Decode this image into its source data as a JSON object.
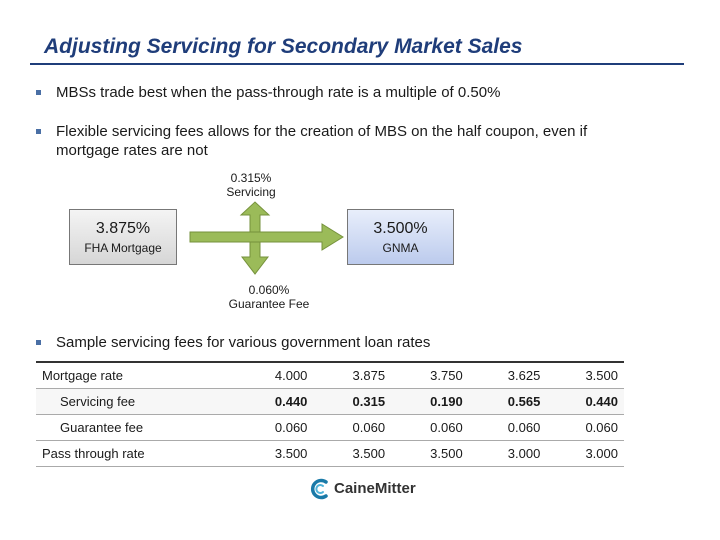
{
  "slide": {
    "title": "Adjusting Servicing for Secondary Market Sales",
    "bullets": [
      "MBSs trade best when the pass-through rate is a multiple of 0.50%",
      "Flexible servicing fees allows for the creation of MBS on the half coupon, even if",
      "mortgage rates are not",
      "Sample servicing fees for various government loan rates"
    ]
  },
  "diagram": {
    "fha": {
      "value": "3.875%",
      "label": "FHA Mortgage"
    },
    "gnma": {
      "value": "3.500%",
      "label": "GNMA"
    },
    "servicing": {
      "value": "0.315%",
      "label": "Servicing"
    },
    "guarantee": {
      "value": "0.060%",
      "label": "Guarantee Fee"
    },
    "colors": {
      "arrow": "#9bbb59",
      "gnma_box": "#c6d3f0"
    }
  },
  "table": {
    "rows": [
      {
        "label": "Mortgage rate",
        "values": [
          "4.000",
          "3.875",
          "3.750",
          "3.625",
          "3.500"
        ]
      },
      {
        "label": "Servicing fee",
        "values": [
          "0.440",
          "0.315",
          "0.190",
          "0.565",
          "0.440"
        ]
      },
      {
        "label": "Guarantee fee",
        "values": [
          "0.060",
          "0.060",
          "0.060",
          "0.060",
          "0.060"
        ]
      },
      {
        "label": "Pass through rate",
        "values": [
          "3.500",
          "3.500",
          "3.500",
          "3.000",
          "3.000"
        ]
      }
    ]
  },
  "footer": {
    "logo_text": "CaineMitter"
  }
}
